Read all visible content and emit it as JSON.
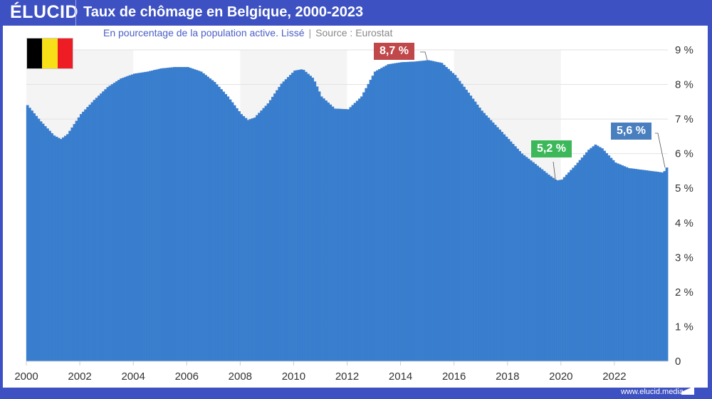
{
  "header": {
    "logo": "ÉLUCID",
    "title": "Taux de chômage en Belgique, 2000-2023"
  },
  "subtitle": {
    "text": "En pourcentage de la population active. Lissé",
    "separator": "|",
    "source": "Source : Eurostat"
  },
  "flag": {
    "colors": [
      "#000000",
      "#f7e017",
      "#ee1c25"
    ]
  },
  "footer": {
    "url": "www.elucid.media"
  },
  "colors": {
    "bar": "#3a7fcf",
    "band": "#f4f4f4",
    "brand": "#3d51c2",
    "max": "#c0474a",
    "min": "#3cb85a",
    "last": "#4a7fbf"
  },
  "annotations": [
    {
      "label": "8,7 %",
      "type": "max"
    },
    {
      "label": "5,2 %",
      "type": "min"
    },
    {
      "label": "5,6 %",
      "type": "last"
    }
  ],
  "chart_data": {
    "type": "bar",
    "title": "Taux de chômage en Belgique, 2000-2023",
    "ylabel": "%",
    "xlim": [
      2000,
      2024
    ],
    "ylim": [
      0,
      9
    ],
    "x_ticks": [
      "2000",
      "2002",
      "2004",
      "2006",
      "2008",
      "2010",
      "2012",
      "2014",
      "2016",
      "2018",
      "2020",
      "2022"
    ],
    "y_ticks": [
      "0",
      "1 %",
      "2 %",
      "3 %",
      "4 %",
      "5 %",
      "6 %",
      "7 %",
      "8 %",
      "9 %"
    ],
    "frequency": "monthly (interpolated from key points)",
    "points": [
      [
        2000.0,
        7.4
      ],
      [
        2000.5,
        6.93
      ],
      [
        2001.0,
        6.52
      ],
      [
        2001.25,
        6.42
      ],
      [
        2001.5,
        6.56
      ],
      [
        2002.0,
        7.14
      ],
      [
        2002.5,
        7.55
      ],
      [
        2003.0,
        7.92
      ],
      [
        2003.5,
        8.17
      ],
      [
        2004.0,
        8.31
      ],
      [
        2004.5,
        8.37
      ],
      [
        2005.0,
        8.46
      ],
      [
        2005.5,
        8.5
      ],
      [
        2006.0,
        8.5
      ],
      [
        2006.5,
        8.37
      ],
      [
        2007.0,
        8.07
      ],
      [
        2007.5,
        7.65
      ],
      [
        2008.0,
        7.14
      ],
      [
        2008.25,
        6.97
      ],
      [
        2008.5,
        7.04
      ],
      [
        2009.0,
        7.45
      ],
      [
        2009.5,
        8.02
      ],
      [
        2010.0,
        8.4
      ],
      [
        2010.3,
        8.44
      ],
      [
        2010.7,
        8.17
      ],
      [
        2011.0,
        7.65
      ],
      [
        2011.5,
        7.3
      ],
      [
        2012.0,
        7.28
      ],
      [
        2012.5,
        7.65
      ],
      [
        2013.0,
        8.37
      ],
      [
        2013.5,
        8.58
      ],
      [
        2014.0,
        8.64
      ],
      [
        2014.5,
        8.66
      ],
      [
        2015.0,
        8.7
      ],
      [
        2015.5,
        8.62
      ],
      [
        2016.0,
        8.27
      ],
      [
        2016.5,
        7.76
      ],
      [
        2017.0,
        7.24
      ],
      [
        2017.5,
        6.83
      ],
      [
        2018.0,
        6.42
      ],
      [
        2018.5,
        6.0
      ],
      [
        2019.0,
        5.7
      ],
      [
        2019.5,
        5.39
      ],
      [
        2019.8,
        5.22
      ],
      [
        2020.0,
        5.25
      ],
      [
        2020.5,
        5.66
      ],
      [
        2021.0,
        6.11
      ],
      [
        2021.25,
        6.26
      ],
      [
        2021.5,
        6.15
      ],
      [
        2022.0,
        5.74
      ],
      [
        2022.5,
        5.58
      ],
      [
        2023.0,
        5.53
      ],
      [
        2023.8,
        5.45
      ],
      [
        2023.92,
        5.6
      ]
    ],
    "shaded_periods": [
      [
        2000,
        2004
      ],
      [
        2008,
        2012
      ],
      [
        2016,
        2020
      ]
    ],
    "annotations": [
      {
        "label": "8,7 %",
        "x": 2015.0,
        "y": 8.7
      },
      {
        "label": "5,2 %",
        "x": 2019.8,
        "y": 5.2
      },
      {
        "label": "5,6 %",
        "x": 2023.92,
        "y": 5.6
      }
    ]
  }
}
